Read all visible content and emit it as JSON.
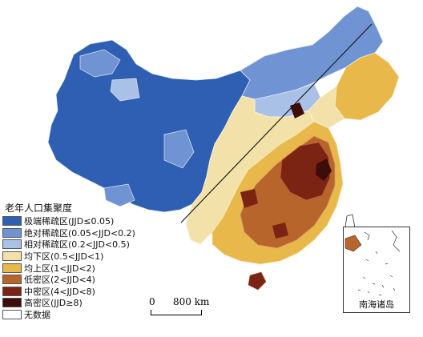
{
  "legend": {
    "title": "老年人口集聚度",
    "items": [
      {
        "label": "极端稀疏区(JJD≤0.05)",
        "color": "#2f5fb3"
      },
      {
        "label": "绝对稀疏区(0.05<JJD<0.2)",
        "color": "#6f93d3"
      },
      {
        "label": "相对稀疏区(0.2<JJD<0.5)",
        "color": "#a9c1e6"
      },
      {
        "label": "均下区(0.5<JJD<1)",
        "color": "#f2e2aa"
      },
      {
        "label": "均上区(1<JJD<2)",
        "color": "#e9b84a"
      },
      {
        "label": "低密区(2<JJD<4)",
        "color": "#b7652a"
      },
      {
        "label": "中密区(4<JJD<8)",
        "color": "#7b2413"
      },
      {
        "label": "高密区(JJD≥8)",
        "color": "#3d0d0a"
      },
      {
        "label": "无数据",
        "color": "#ffffff"
      }
    ]
  },
  "scale": {
    "zero": "0",
    "label": "800 km"
  },
  "inset": {
    "label": "南海诸岛"
  }
}
